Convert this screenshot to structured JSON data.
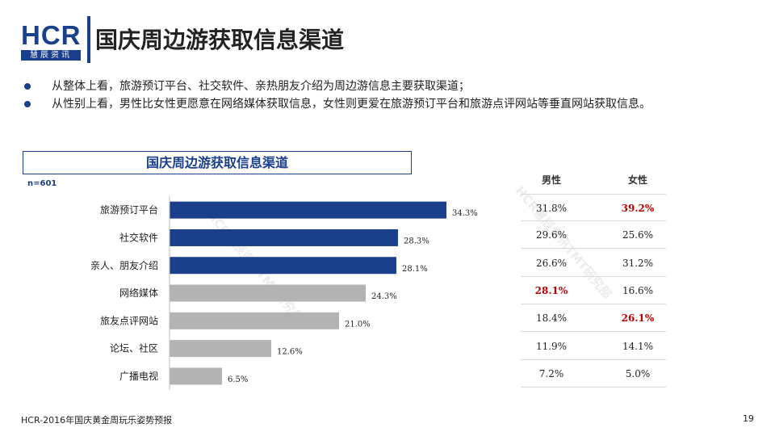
{
  "logo": {
    "main": "HCR",
    "sub": "慧辰资讯"
  },
  "page_title": "国庆周边游获取信息渠道",
  "bullets": [
    "从整体上看，旅游预订平台、社交软件、亲热朋友介绍为周边游信息主要获取渠道；",
    "从性别上看，男性比女性更愿意在网络媒体获取信息，女性则更爱在旅游预订平台和旅游点评网站等垂直网站获取信息。"
  ],
  "chart_title": "国庆周边游获取信息渠道",
  "sample_label": "n=601",
  "watermark": "HCR慧辰资讯TMT研究部",
  "colors": {
    "primary": "#1a3f8b",
    "secondary": "#b3b3b3",
    "highlight": "#c00000"
  },
  "chart_data": {
    "type": "bar",
    "orientation": "horizontal",
    "categories": [
      "旅游预订平台",
      "社交软件",
      "亲人、朋友介绍",
      "网络媒体",
      "旅友点评网站",
      "论坛、社区",
      "广播电视"
    ],
    "values": [
      34.3,
      28.3,
      28.1,
      24.3,
      21.0,
      12.6,
      6.5
    ],
    "value_labels": [
      "34.3%",
      "28.3%",
      "28.1%",
      "24.3%",
      "21.0%",
      "12.6%",
      "6.5%"
    ],
    "highlighted_count": 3,
    "xlim": [
      0,
      40
    ]
  },
  "table": {
    "headers": {
      "male": "男性",
      "female": "女性"
    },
    "rows": [
      {
        "male": "31.8%",
        "female": "39.2%",
        "male_hl": false,
        "female_hl": true
      },
      {
        "male": "29.6%",
        "female": "25.6%",
        "male_hl": false,
        "female_hl": false
      },
      {
        "male": "26.6%",
        "female": "31.2%",
        "male_hl": false,
        "female_hl": false
      },
      {
        "male": "28.1%",
        "female": "16.6%",
        "male_hl": true,
        "female_hl": false
      },
      {
        "male": "18.4%",
        "female": "26.1%",
        "male_hl": false,
        "female_hl": true
      },
      {
        "male": "11.9%",
        "female": "14.1%",
        "male_hl": false,
        "female_hl": false
      },
      {
        "male": "7.2%",
        "female": "5.0%",
        "male_hl": false,
        "female_hl": false
      }
    ]
  },
  "footer": {
    "source": "HCR-2016年国庆黄金周玩乐姿势预报",
    "page_number": "19"
  }
}
